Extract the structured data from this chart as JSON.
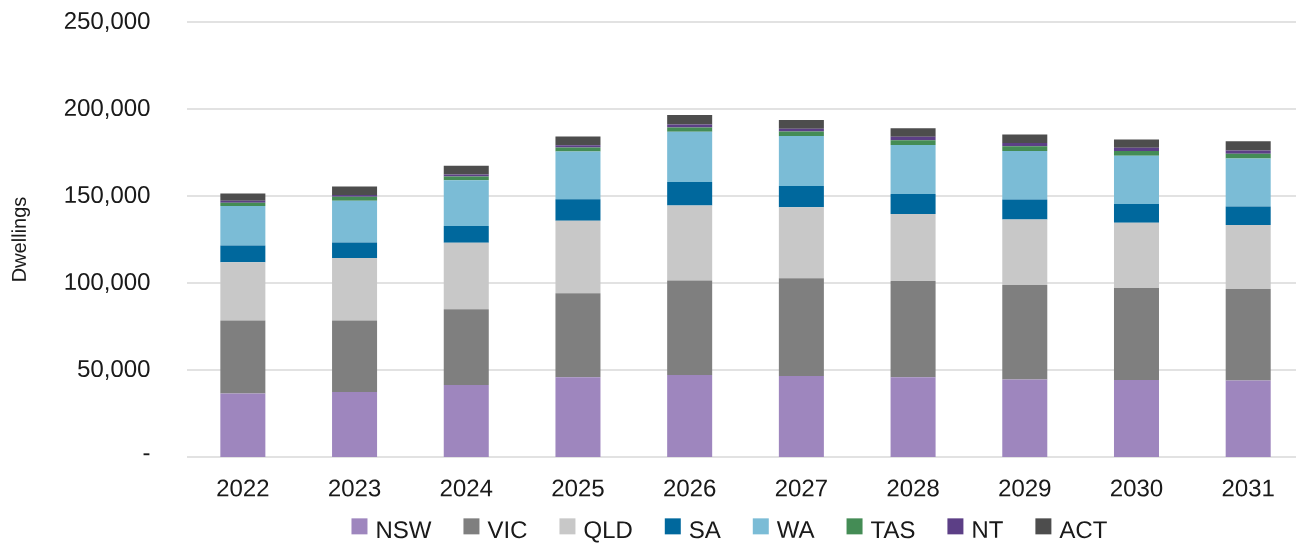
{
  "chart_data": {
    "type": "bar",
    "stacked": true,
    "ylabel": "Dwellings",
    "categories": [
      "2022",
      "2023",
      "2024",
      "2025",
      "2026",
      "2027",
      "2028",
      "2029",
      "2030",
      "2031"
    ],
    "series": [
      {
        "name": "NSW",
        "color": "#9e86be",
        "values": [
          36500,
          37300,
          41400,
          45800,
          47100,
          46500,
          45800,
          44600,
          44200,
          43900
        ]
      },
      {
        "name": "VIC",
        "color": "#7f7f7f",
        "values": [
          41900,
          41200,
          43500,
          48300,
          54400,
          56300,
          55400,
          54200,
          52900,
          52700
        ]
      },
      {
        "name": "QLD",
        "color": "#c8c8c8",
        "values": [
          33500,
          35800,
          38300,
          41700,
          43100,
          40800,
          38500,
          37700,
          37500,
          36700
        ]
      },
      {
        "name": "SA",
        "color": "#00689d",
        "values": [
          9600,
          9000,
          9600,
          12300,
          13500,
          12100,
          11500,
          11500,
          10800,
          10600
        ]
      },
      {
        "name": "WA",
        "color": "#7bbcd6",
        "values": [
          22700,
          24000,
          26300,
          27500,
          28800,
          28800,
          28100,
          27900,
          27700,
          27700
        ]
      },
      {
        "name": "TAS",
        "color": "#448c55",
        "values": [
          1900,
          2300,
          2100,
          2300,
          2500,
          2500,
          2700,
          2700,
          2700,
          2700
        ]
      },
      {
        "name": "NT",
        "color": "#5c3f86",
        "values": [
          1200,
          1000,
          1200,
          1300,
          1700,
          1700,
          2100,
          1900,
          1900,
          1900
        ]
      },
      {
        "name": "ACT",
        "color": "#4d4d4d",
        "values": [
          4200,
          4800,
          5000,
          5000,
          5400,
          5000,
          4800,
          4800,
          4800,
          5200
        ]
      }
    ],
    "ylim": [
      0,
      250000
    ],
    "yticks": [
      {
        "value": 0,
        "label": "-"
      },
      {
        "value": 50000,
        "label": "50,000"
      },
      {
        "value": 100000,
        "label": "100,000"
      },
      {
        "value": 150000,
        "label": "150,000"
      },
      {
        "value": 200000,
        "label": "200,000"
      },
      {
        "value": 250000,
        "label": "250,000"
      }
    ],
    "grid": "y",
    "legend": "bottom"
  }
}
